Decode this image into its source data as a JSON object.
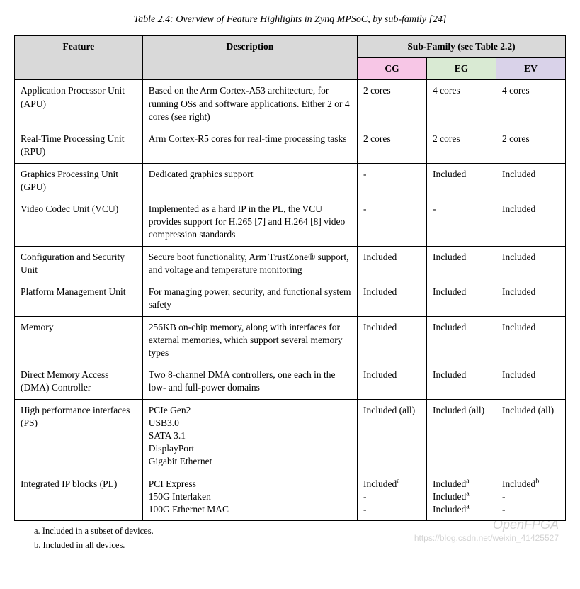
{
  "caption": "Table 2.4: Overview of Feature Highlights in Zynq MPSoC, by sub-family [24]",
  "header": {
    "feature": "Feature",
    "description": "Description",
    "subfamily": "Sub-Family (see Table 2.2)",
    "cg": "CG",
    "eg": "EG",
    "ev": "EV"
  },
  "rows": [
    {
      "feature": "Application Processor Unit (APU)",
      "desc": "Based on the Arm Cortex-A53 architecture, for running OSs and software applications. Either 2 or 4 cores (see right)",
      "cg": "2 cores",
      "eg": "4 cores",
      "ev": "4 cores"
    },
    {
      "feature": "Real-Time Processing Unit (RPU)",
      "desc": "Arm Cortex-R5 cores for real-time processing tasks",
      "cg": "2 cores",
      "eg": "2 cores",
      "ev": "2 cores"
    },
    {
      "feature": "Graphics Processing Unit (GPU)",
      "desc": "Dedicated graphics support",
      "cg": "-",
      "eg": "Included",
      "ev": "Included"
    },
    {
      "feature": "Video Codec Unit (VCU)",
      "desc": "Implemented as a hard IP in the PL, the VCU provides support for H.265 [7] and H.264 [8] video compression standards",
      "cg": "-",
      "eg": "-",
      "ev": "Included"
    },
    {
      "feature": "Configuration and Security Unit",
      "desc": "Secure boot functionality, Arm TrustZone® support, and voltage and temperature monitoring",
      "cg": "Included",
      "eg": "Included",
      "ev": "Included"
    },
    {
      "feature": "Platform Management Unit",
      "desc": "For managing power, security, and functional system safety",
      "cg": "Included",
      "eg": "Included",
      "ev": "Included"
    },
    {
      "feature": "Memory",
      "desc": "256KB on-chip memory, along with interfaces for external memories, which support several memory types",
      "cg": "Included",
      "eg": "Included",
      "ev": "Included"
    },
    {
      "feature": "Direct Memory Access (DMA) Controller",
      "desc": "Two 8-channel DMA controllers, one each in the low- and full-power domains",
      "cg": "Included",
      "eg": "Included",
      "ev": "Included"
    },
    {
      "feature": "High performance interfaces (PS)",
      "desc": "PCIe Gen2\nUSB3.0\nSATA 3.1\nDisplayPort\nGigabit Ethernet",
      "cg": "Included (all)",
      "eg": "Included (all)",
      "ev": "Included (all)"
    },
    {
      "feature": "Integrated IP blocks (PL)",
      "desc": "PCI Express\n150G Interlaken\n100G Ethernet MAC",
      "cg_html": "Included<sup>a</sup><br>-<br>-",
      "eg_html": "Included<sup>a</sup><br>Included<sup>a</sup><br>Included<sup>a</sup>",
      "ev_html": "Included<sup>b</sup><br>-<br>-"
    }
  ],
  "footnotes": {
    "a": "a.  Included in a subset of devices.",
    "b": "b.  Included in all devices."
  },
  "watermark1": "OpenFPGA",
  "watermark2": "https://blog.csdn.net/weixin_41425527",
  "colors": {
    "header_grey": "#d9d9d9",
    "cg_bg": "#f7c6e6",
    "eg_bg": "#d9ead3",
    "ev_bg": "#d9d2e9",
    "border": "#000000",
    "background": "#ffffff"
  }
}
